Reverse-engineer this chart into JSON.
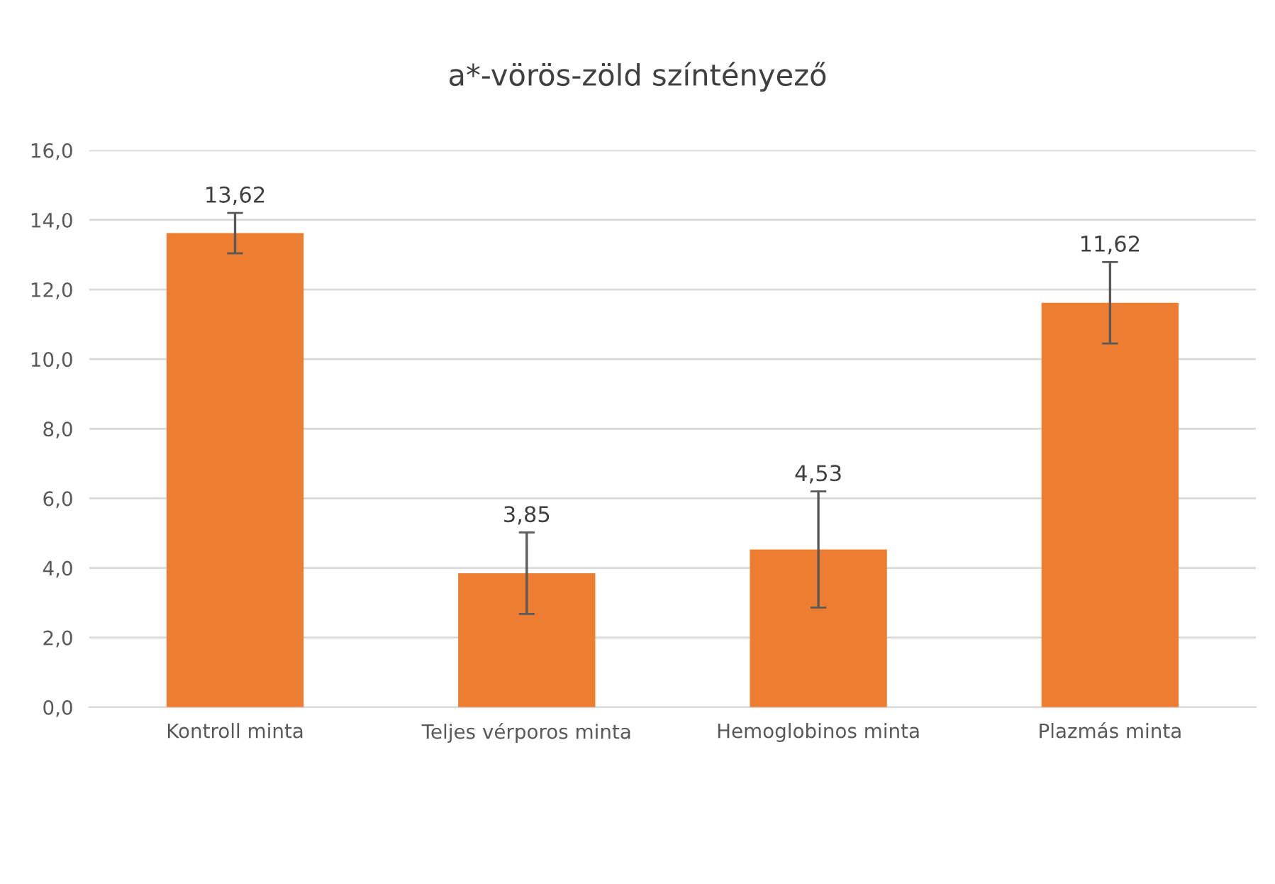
{
  "chart_data": {
    "type": "bar",
    "title": "a*-vörös-zöld színtényező",
    "categories": [
      "Kontroll minta",
      "Teljes vérporos minta",
      "Hemoglobinos minta",
      "Plazmás minta"
    ],
    "values": [
      13.62,
      3.85,
      4.53,
      11.62
    ],
    "errors": [
      0.58,
      1.17,
      1.67,
      1.17
    ],
    "color": "#ed7d31",
    "ylim": [
      0,
      16
    ],
    "yticks": [
      {
        "value": 0,
        "label": "0,0"
      },
      {
        "value": 2,
        "label": "2,0"
      },
      {
        "value": 4,
        "label": "4,0"
      },
      {
        "value": 6,
        "label": "6,0"
      },
      {
        "value": 8,
        "label": "8,0"
      },
      {
        "value": 10,
        "label": "10,0"
      },
      {
        "value": 12,
        "label": "12,0"
      },
      {
        "value": 14,
        "label": "14,0"
      },
      {
        "value": 16,
        "label": "16,0"
      }
    ],
    "value_labels": [
      "13,62",
      "3,85",
      "4,53",
      "11,62"
    ],
    "grid": "y"
  }
}
